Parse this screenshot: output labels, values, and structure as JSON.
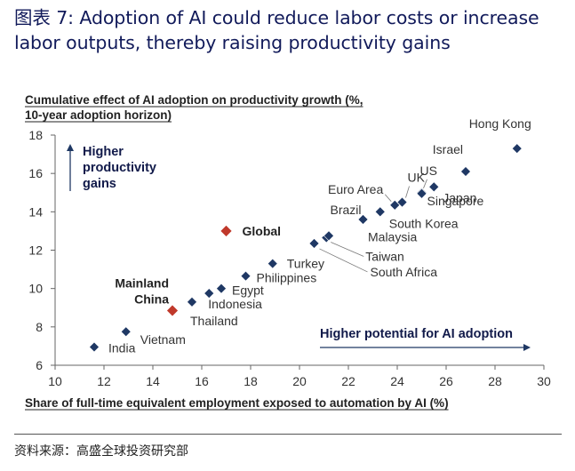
{
  "figure": {
    "title": "图表 7: Adoption of AI could reduce labor costs or increase labor outputs, thereby raising productivity gains",
    "source": "资料来源：高盛全球投资研究部"
  },
  "colors": {
    "point": "#1f3864",
    "highlight": "#c0392b",
    "title": "#111a5a",
    "text": "#222222"
  },
  "chart_data": {
    "type": "scatter",
    "ylabel": "Cumulative effect  of AI adoption on productivity growth (%, 10-year adoption horizon)",
    "ylabel_lines": [
      "Cumulative effect  of AI adoption on productivity growth (%,",
      "10-year adoption horizon)"
    ],
    "xlabel": "Share of full-time equivalent employment exposed to automation by AI (%)",
    "xlim": [
      10,
      30
    ],
    "ylim": [
      6,
      18
    ],
    "xticks": [
      10,
      12,
      14,
      16,
      18,
      20,
      22,
      24,
      26,
      28,
      30
    ],
    "yticks": [
      6,
      8,
      10,
      12,
      14,
      16,
      18
    ],
    "grid": false,
    "annotations": {
      "y_arrow": [
        "Higher",
        "productivity",
        "gains"
      ],
      "x_arrow": "Higher potential for AI adoption"
    },
    "points": [
      {
        "label": "India",
        "x": 11.6,
        "y": 6.95,
        "highlight": false
      },
      {
        "label": "Vietnam",
        "x": 12.9,
        "y": 7.75,
        "highlight": false
      },
      {
        "label": "Mainland China",
        "label_lines": [
          "Mainland",
          "China"
        ],
        "x": 14.8,
        "y": 8.85,
        "highlight": true
      },
      {
        "label": "Thailand",
        "x": 15.6,
        "y": 9.3,
        "highlight": false
      },
      {
        "label": "Indonesia",
        "x": 16.3,
        "y": 9.75,
        "highlight": false
      },
      {
        "label": "Egypt",
        "x": 16.8,
        "y": 10.0,
        "highlight": false
      },
      {
        "label": "Philippines",
        "x": 17.8,
        "y": 10.65,
        "highlight": false
      },
      {
        "label": "Turkey",
        "x": 18.9,
        "y": 11.3,
        "highlight": false
      },
      {
        "label": "South Africa",
        "x": 20.6,
        "y": 12.35,
        "highlight": false
      },
      {
        "label": "Taiwan",
        "x": 21.1,
        "y": 12.65,
        "highlight": false
      },
      {
        "label": "Malaysia",
        "x": 21.2,
        "y": 12.75,
        "highlight": false
      },
      {
        "label": "Global",
        "x": 17.0,
        "y": 13.0,
        "highlight": true
      },
      {
        "label": "Brazil",
        "x": 22.6,
        "y": 13.6,
        "highlight": false
      },
      {
        "label": "South Korea",
        "x": 23.3,
        "y": 14.0,
        "highlight": false
      },
      {
        "label": "Euro Area",
        "x": 23.9,
        "y": 14.35,
        "highlight": false
      },
      {
        "label": "UK",
        "x": 24.2,
        "y": 14.5,
        "highlight": false
      },
      {
        "label": "Singapore",
        "x": 25.0,
        "y": 15.0,
        "highlight": false
      },
      {
        "label": "US",
        "x": 25.0,
        "y": 14.95,
        "highlight": false
      },
      {
        "label": "Japan",
        "x": 25.5,
        "y": 15.3,
        "highlight": false
      },
      {
        "label": "Israel",
        "x": 26.8,
        "y": 16.1,
        "highlight": false
      },
      {
        "label": "Hong Kong",
        "x": 28.9,
        "y": 17.3,
        "highlight": false
      }
    ]
  }
}
